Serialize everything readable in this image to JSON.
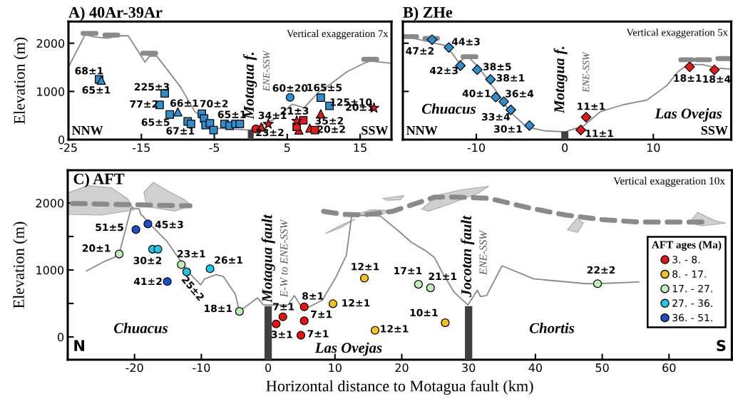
{
  "chart_data": [
    {
      "type": "scatter",
      "title": "A) 40Ar-39Ar",
      "ylabel": "Elevation (m)",
      "xlim": [
        -25,
        19.3
      ],
      "xticks": [
        -25,
        -15,
        -5,
        5,
        15
      ],
      "ylim": [
        0,
        2450
      ],
      "yticks": [
        0,
        1000,
        2000
      ],
      "annotations": [
        "Vertical exaggeration 7x",
        "NNW",
        "SSW",
        "Motagua f.",
        "ENE-SSW"
      ],
      "series": [
        {
          "type": "line",
          "color": "#8a8a8a",
          "line_style": "solid",
          "x": [
            -25,
            -22.7,
            -21.4,
            -19.7,
            -18.1,
            -16.8,
            -14.5,
            -13.9,
            -12.9,
            -11.6,
            -9.6,
            -7.7,
            -6.0,
            -5.1,
            -1.8,
            -0.2,
            1.45,
            3.4,
            5.7,
            7.3,
            9.3,
            11.2,
            13.2,
            15.5,
            16.4,
            19.3
          ],
          "values": [
            1507,
            2179,
            2129,
            2104,
            2154,
            2154,
            1607,
            1731,
            1731,
            1483,
            1085,
            587,
            388,
            239,
            214,
            199,
            289,
            438,
            736,
            662,
            985,
            1184,
            1408,
            1582,
            1632,
            1582
          ]
        },
        {
          "type": "line",
          "color": "#8a8a8a",
          "line_style": "dashed",
          "x": [
            -23,
            -20.4,
            -20.2,
            -20,
            -18.1,
            -16,
            -14.8,
            -12.9,
            0,
            15.5,
            18.4
          ],
          "values": [
            2204,
            2204,
            null,
            2169,
            2169,
            null,
            1791,
            1791,
            null,
            1667,
            1667
          ]
        },
        {
          "type": "bar",
          "color": "#404040",
          "x": [
            0
          ],
          "base": [
            0
          ],
          "values": [
            200
          ]
        },
        {
          "color": "#2e8fcf",
          "marker": "square",
          "x": [
            -20.8,
            -11.8,
            -12.5,
            -11.1,
            -8.65,
            -8.2,
            -6.7,
            -6.4,
            -6.2,
            -5.6,
            -5.1,
            -3.6,
            -2.9,
            -2.1,
            -1.5,
            9.6,
            10.8
          ],
          "values": [
            1249,
            960,
            721,
            522,
            378,
            328,
            537,
            438,
            303,
            338,
            199,
            328,
            289,
            328,
            328,
            871,
            701
          ],
          "value_labels": [
            "68±1",
            "225±3",
            "77±2",
            "65±5",
            null,
            "67±1",
            "70±2",
            null,
            null,
            null,
            null,
            null,
            null,
            "65±1",
            null,
            "165±5",
            "125±10"
          ]
        },
        {
          "color": "#2e8fcf",
          "marker": "triangle",
          "x": [
            -20.5,
            -10.0
          ],
          "values": [
            1234,
            577
          ],
          "value_labels": [
            "65±1",
            "66±1"
          ]
        },
        {
          "color": "#2e8fcf",
          "marker": "circle",
          "x": [
            5.4
          ],
          "values": [
            876
          ],
          "value_labels": [
            "60±20"
          ]
        },
        {
          "color": "#e31a1c",
          "marker": "circle",
          "x": [
            0.7
          ],
          "values": [
            224
          ]
        },
        {
          "color": "#e31a1c",
          "marker": "triangle",
          "x": [
            1.45,
            6.6,
            8.1,
            9.6
          ],
          "values": [
            264,
            199,
            239,
            537
          ],
          "value_labels": [
            "23±2",
            null,
            null,
            "35±2"
          ]
        },
        {
          "color": "#e31a1c",
          "marker": "square",
          "x": [
            6.3,
            7.2,
            8.8
          ],
          "values": [
            264,
            403,
            199
          ],
          "value_labels": [
            null,
            null,
            "20±2"
          ]
        },
        {
          "color": "#e31a1c",
          "marker": "star",
          "x": [
            2.4,
            6.3,
            16.9
          ],
          "values": [
            323,
            388,
            657
          ],
          "value_labels": [
            "34±1",
            "21±3",
            "20±1"
          ]
        }
      ]
    },
    {
      "type": "scatter",
      "title": "B) ZHe",
      "tick_labels": "x",
      "xlim": [
        -18.3,
        18.8
      ],
      "xticks": [
        -10,
        0,
        10
      ],
      "ylim": [
        0,
        2450
      ],
      "yticks": [
        {
          "value": 1000,
          "label": null
        },
        {
          "value": 2000,
          "label": null
        }
      ],
      "annotations": [
        "Vertical exaggeration 5x",
        "NNW",
        "SSW",
        "Motagua f.",
        "ENE-SSW",
        "Chuacus",
        "Las Ovejas"
      ],
      "series": [
        {
          "type": "line",
          "color": "#8a8a8a",
          "line_style": "solid",
          "x": [
            -18.2,
            -15.8,
            -14.7,
            -13.4,
            -12.0,
            -11.0,
            -9.9,
            -7.8,
            -6.2,
            -4.3,
            -2.4,
            0,
            2.1,
            4.0,
            6.6,
            9.3,
            11.5,
            12.8,
            13.9,
            15.5,
            17.3,
            18.8
          ],
          "values": [
            2147,
            2049,
            2000,
            1951,
            1608,
            1730,
            1534,
            1020,
            578,
            260,
            186,
            162,
            284,
            578,
            725,
            824,
            1118,
            1412,
            1559,
            1559,
            1485,
            1461
          ]
        },
        {
          "type": "line",
          "color": "#8a8a8a",
          "line_style": "dashed",
          "x": [
            -18.2,
            -16.6,
            -16.2,
            -15.8,
            -14.4,
            -13,
            -11.5,
            -9.9,
            0,
            13.1,
            14.4,
            14.6,
            14.9,
            16.5,
            16.9,
            17.3,
            18.8
          ],
          "values": [
            2137,
            2137,
            null,
            2098,
            2098,
            null,
            1720,
            1720,
            null,
            1657,
            1657,
            null,
            1657,
            1657,
            null,
            1681,
            1681
          ]
        },
        {
          "type": "bar",
          "color": "#404040",
          "x": [
            0
          ],
          "base": [
            0
          ],
          "values": [
            170
          ]
        },
        {
          "color": "#2e8fcf",
          "marker": "diamond",
          "x": [
            -15.0,
            -13.1,
            -11.8,
            -9.9,
            -8.4,
            -7.8,
            -6.9,
            -6.1,
            -4.0
          ],
          "values": [
            2074,
            1912,
            1534,
            1451,
            1250,
            882,
            789,
            618,
            294
          ],
          "value_labels": [
            "47±2",
            "44±3",
            "42±3",
            "38±5",
            "38±1",
            "40±1",
            "36±4",
            "33±4",
            "30±1"
          ]
        },
        {
          "color": "#e31a1c",
          "marker": "diamond",
          "x": [
            2.4,
            1.8,
            14.1,
            16.9
          ],
          "values": [
            466,
            201,
            1510,
            1446
          ],
          "value_labels": [
            "11±1",
            "11±1",
            "18±1",
            "18±4"
          ]
        }
      ]
    },
    {
      "type": "scatter",
      "title": "C) AFT",
      "xlabel": "Horizontal distance to Motagua fault (km)",
      "ylabel": "Elevation (m)",
      "xlim": [
        -30,
        69.4
      ],
      "xticks": [
        -20,
        -10,
        0,
        10,
        20,
        30,
        40,
        50,
        60
      ],
      "ylim": [
        -340,
        2490
      ],
      "yticks": [
        0,
        {
          "value": 500,
          "label": null
        },
        1000,
        {
          "value": 1500,
          "label": null
        },
        2000
      ],
      "legend": "right",
      "legend_title": "AFT ages (Ma)",
      "annotations": [
        "Vertical exaggeration 10x",
        "N",
        "S",
        "Motagua fault",
        "E-W to ENE-SSW",
        "Jocotan fault",
        "ENE-SSW",
        "Chuacus",
        "Las Ovejas",
        "Chortis"
      ],
      "series": [
        {
          "type": "line",
          "color": "#8a8a8a",
          "line_style": "solid",
          "x": [
            -27.2,
            -24.4,
            -23.1,
            -22.3,
            -20.5,
            -19.3,
            -19.1,
            -17.3,
            -15.2,
            -13.1,
            -12.0,
            -10.1,
            -9.5,
            -7.8,
            -6.7,
            -4.9,
            -4.3,
            -1.6,
            -0.7,
            0,
            3.0,
            3.9,
            4.8,
            6.0,
            8.1,
            10.2,
            11.7,
            12.5,
            13.1,
            16.8,
            19.6,
            21.4,
            23.5,
            24.9,
            26.0,
            27.8,
            29.9,
            31.3,
            31.8,
            32.7,
            35.0,
            39.8,
            47.6,
            49.3,
            55.5
          ],
          "values": [
            984,
            1133,
            1186,
            1239,
            1929,
            1912,
            1840,
            1646,
            1434,
            1133,
            973,
            779,
            867,
            931,
            903,
            637,
            382,
            584,
            478,
            478,
            478,
            619,
            478,
            442,
            549,
            903,
            1221,
            1805,
            1816,
            1805,
            1575,
            1416,
            1292,
            1186,
            973,
            673,
            478,
            697,
            602,
            619,
            1062,
            867,
            796,
            796,
            821
          ]
        },
        {
          "type": "line",
          "color": "#8a8a8a",
          "line_style": "dashed",
          "x": [
            -29.3,
            -11.7,
            -2,
            8.3,
            11.3,
            14.3,
            18.6,
            24.9,
            28.4,
            33.0,
            39.0,
            44.4,
            50,
            55.3,
            65.2
          ],
          "values": [
            1993,
            1958,
            null,
            1876,
            1830,
            1823,
            1876,
            2088,
            2088,
            2071,
            1929,
            1823,
            1752,
            1717,
            1717
          ]
        },
        {
          "type": "bar",
          "color": "#404040",
          "x": [
            0,
            30
          ],
          "base": [
            -340,
            -340
          ],
          "values": [
            800,
            800
          ]
        },
        {
          "name": "3. - 8.",
          "color": "#ee1111",
          "marker": "circle",
          "x": [
            1.2,
            2.2,
            5.4,
            5.4,
            4.9
          ],
          "values": [
            195,
            301,
            450,
            241,
            25
          ],
          "value_labels": [
            "3±1",
            "7±1",
            "8±1",
            "7±1",
            "7±1"
          ]
        },
        {
          "name": "8. - 17.",
          "color": "#f7c21a",
          "marker": "circle",
          "x": [
            14.4,
            9.7,
            16.0,
            26.5
          ],
          "values": [
            878,
            496,
            99,
            212
          ],
          "value_labels": [
            "12±1",
            "12±1",
            "12±1",
            "10±1"
          ]
        },
        {
          "name": "17. - 27.",
          "color": "#bff0b8",
          "marker": "circle",
          "x": [
            -22.3,
            -13.0,
            -4.3,
            22.5,
            24.3,
            49.3
          ],
          "values": [
            1239,
            1080,
            382,
            786,
            733,
            796
          ],
          "value_labels": [
            "20±1",
            "23±1",
            "18±1",
            "17±1",
            "21±1",
            "22±2"
          ]
        },
        {
          "name": "27. - 36.",
          "color": "#1ec8ea",
          "marker": "circle",
          "x": [
            -17.3,
            -16.5,
            -12.2,
            -8.7
          ],
          "values": [
            1310,
            1310,
            973,
            1019
          ],
          "value_labels": [
            "30±2",
            null,
            "25±2",
            "26±1"
          ]
        },
        {
          "name": "36. - 51.",
          "color": "#1a4fd0",
          "marker": "circle",
          "x": [
            -19.8,
            -18.0,
            -15.1
          ],
          "values": [
            1604,
            1688,
            828
          ],
          "value_labels": [
            "51±5",
            "45±3",
            "41±2"
          ]
        }
      ]
    }
  ]
}
